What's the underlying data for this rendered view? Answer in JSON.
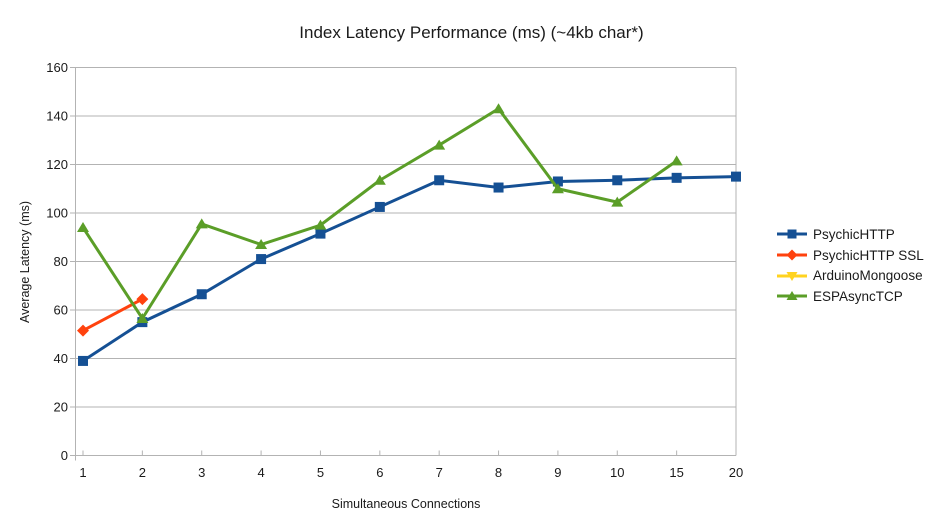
{
  "chart_data": {
    "type": "line",
    "title": "Index Latency Performance (ms) (~4kb char*)",
    "xlabel": "Simultaneous Connections",
    "ylabel": "Average Latency (ms)",
    "x_categories": [
      "1",
      "2",
      "3",
      "4",
      "5",
      "6",
      "7",
      "8",
      "9",
      "10",
      "15",
      "20"
    ],
    "y_ticks": [
      0,
      20,
      40,
      60,
      80,
      100,
      120,
      140,
      160
    ],
    "ylim": [
      0,
      160
    ],
    "grid": "horizontal",
    "legend_position": "right",
    "background_color": "#ffffff",
    "grid_color": "#b3b3b3",
    "text_color": "#1a1a1a",
    "series": [
      {
        "name": "PsychicHTTP",
        "color": "#155094",
        "marker": "square",
        "values": [
          39,
          55,
          66.5,
          81,
          91.5,
          102.5,
          113.5,
          110.5,
          113,
          113.5,
          114.5,
          115
        ]
      },
      {
        "name": "PsychicHTTP SSL",
        "color": "#FF420E",
        "marker": "diamond",
        "values": [
          51.5,
          64.5,
          null,
          null,
          null,
          null,
          null,
          null,
          null,
          null,
          null,
          null
        ]
      },
      {
        "name": "ArduinoMongoose",
        "color": "#FFD320",
        "marker": "triangle-down",
        "values": [
          null,
          null,
          null,
          null,
          null,
          null,
          null,
          null,
          null,
          null,
          null,
          null
        ]
      },
      {
        "name": "ESPAsyncTCP",
        "color": "#5B9E28",
        "marker": "triangle-up",
        "values": [
          94,
          56.5,
          95.5,
          87,
          95,
          113.5,
          128,
          143,
          110,
          104.5,
          121.5,
          null
        ]
      }
    ]
  }
}
